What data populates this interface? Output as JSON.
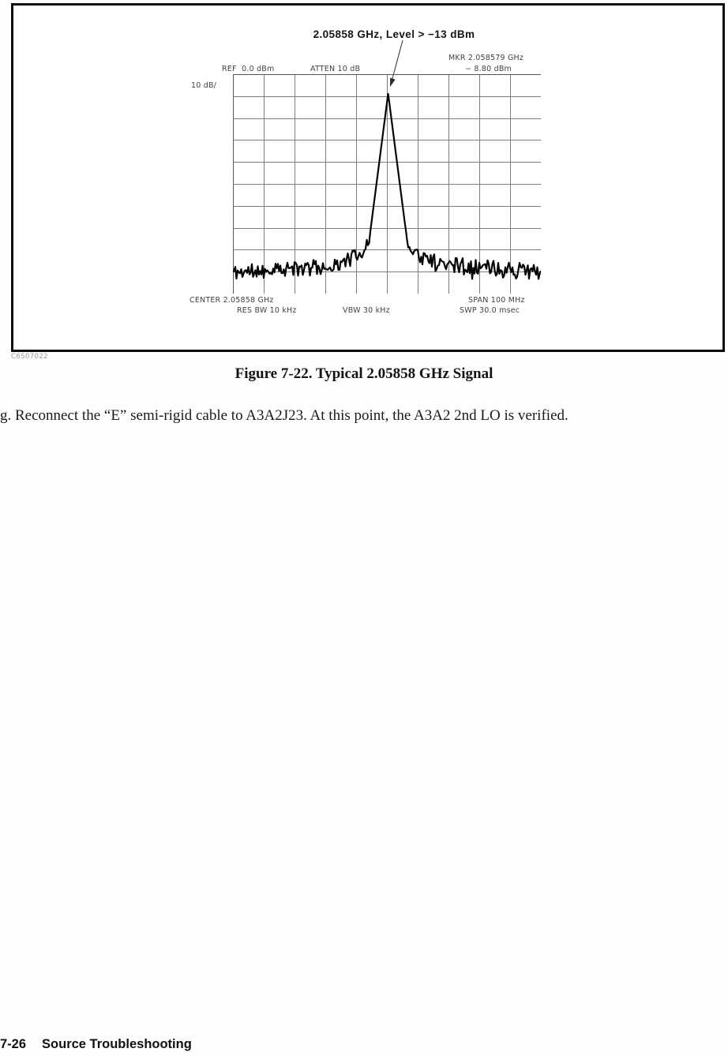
{
  "figure": {
    "annotation": "2.05858 GHz, Level > −13 dBm",
    "image_code": "C6S07022",
    "caption": "Figure 7-22. Typical 2.05858 GHz Signal"
  },
  "spectrum": {
    "ref_label": "REF  0.0 dBm",
    "atten_label": "ATTEN 10 dB",
    "marker_freq_label": "MKR 2.058579 GHz",
    "marker_level_label": "− 8.80 dBm",
    "scale_label": "10 dB/",
    "center_label": "CENTER 2.05858 GHz",
    "span_label": "SPAN 100 MHz",
    "res_bw_label": "RES BW 10 kHz",
    "vbw_label": "VBW 30 kHz",
    "sweep_label": "SWP 30.0 msec"
  },
  "chart_data": {
    "type": "line",
    "title": "2.05858 GHz, Level > −13 dBm",
    "x_axis": {
      "center_ghz": 2.05858,
      "span_mhz": 100,
      "divisions": 10
    },
    "y_axis": {
      "ref_level_dbm": 0.0,
      "db_per_div": 10,
      "divisions": 10
    },
    "attenuation_db": 10,
    "marker": {
      "freq_ghz": 2.058579,
      "level_dbm": -8.8
    },
    "res_bw_khz": 10,
    "video_bw_khz": 30,
    "sweep_time_ms": 30.0,
    "grid": true,
    "series": [
      {
        "name": "trace",
        "envelope_div_dbm": [
          [
            0,
            -90.3
          ],
          [
            0.8,
            -89.8
          ],
          [
            2,
            -89.0
          ],
          [
            3,
            -87.6
          ],
          [
            3.6,
            -86.0
          ],
          [
            4.1,
            -82.0
          ],
          [
            4.41,
            -77.3
          ],
          [
            5.04,
            -8.8
          ],
          [
            5.67,
            -77.3
          ],
          [
            6.2,
            -84.5
          ],
          [
            7.1,
            -86.5
          ],
          [
            8.2,
            -88.0
          ],
          [
            9.3,
            -89.3
          ],
          [
            10,
            -90.3
          ]
        ]
      }
    ],
    "noise_amp_db": 3.5,
    "peak_quiet_div": [
      4.45,
      5.6
    ],
    "render_seed": 11
  },
  "paragraph": "g.  Reconnect the “E” semi-rigid cable to A3A2J23.  At this point, the A3A2 2nd LO is verified.",
  "footer": {
    "page_number": "7-26",
    "section": "Source Troubleshooting"
  }
}
